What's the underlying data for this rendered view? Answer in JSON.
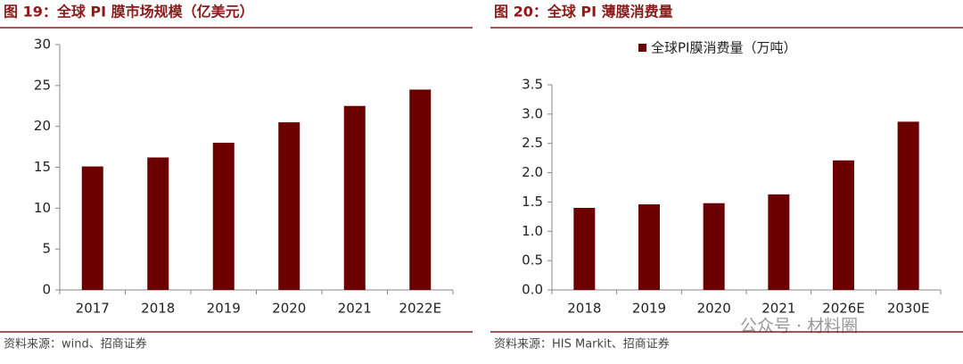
{
  "chart_data": [
    {
      "type": "bar",
      "title": "图 19：全球 PI 膜市场规模（亿美元）",
      "source": "资料来源：wind、招商证券",
      "categories": [
        "2017",
        "2018",
        "2019",
        "2020",
        "2021",
        "2022E"
      ],
      "values": [
        15.1,
        16.2,
        18.0,
        20.5,
        22.5,
        24.5
      ],
      "color": "#6b0000",
      "ylim": [
        0,
        30
      ],
      "yticks": [
        0,
        5,
        10,
        15,
        20,
        25,
        30
      ]
    },
    {
      "type": "bar",
      "title": "图 20：全球 PI 薄膜消费量",
      "source": "资料来源：HIS Markit、招商证券",
      "categories": [
        "2018",
        "2019",
        "2020",
        "2021",
        "2026E",
        "2030E"
      ],
      "series": [
        {
          "name": "全球PI膜消费量（万吨）",
          "color": "#6b0000",
          "values": [
            1.4,
            1.46,
            1.48,
            1.63,
            2.21,
            2.87
          ]
        }
      ],
      "legend": "top",
      "ylim": [
        0,
        3.5
      ],
      "yticks": [
        {
          "value": 0,
          "label": "0.0"
        },
        0.5,
        {
          "value": 1,
          "label": "1.0"
        },
        1.5,
        {
          "value": 2,
          "label": "2.0"
        },
        2.5,
        {
          "value": 3,
          "label": "3.0"
        },
        3.5
      ]
    }
  ],
  "watermark": "公众号 · 材料圈"
}
